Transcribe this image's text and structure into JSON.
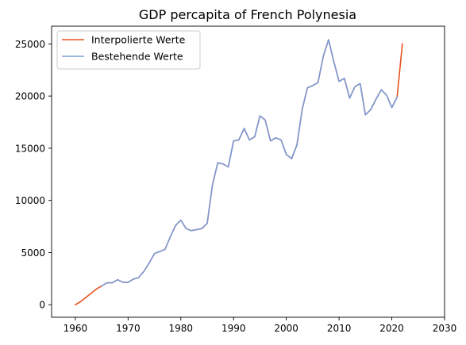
{
  "chart_data": {
    "type": "line",
    "title": "GDP percapita of French Polynesia",
    "xlabel": "",
    "ylabel": "",
    "xlim": [
      1955.5,
      2030
    ],
    "ylim": [
      -1200,
      26700
    ],
    "xticks": [
      1960,
      1970,
      1980,
      1990,
      2000,
      2010,
      2020,
      2030
    ],
    "yticks": [
      0,
      5000,
      10000,
      15000,
      20000,
      25000
    ],
    "grid": false,
    "legend": "top-left",
    "series": [
      {
        "name": "Interpolierte Werte",
        "color": "#e8521d",
        "x": [
          1960,
          1961,
          1962,
          1963,
          1964,
          1965,
          1966,
          1967,
          1968,
          1969,
          1970,
          1971,
          1972,
          1973,
          1974,
          1975,
          1976,
          1977,
          1978,
          1979,
          1980,
          1981,
          1982,
          1983,
          1984,
          1985,
          1986,
          1987,
          1988,
          1989,
          1990,
          1991,
          1992,
          1993,
          1994,
          1995,
          1996,
          1997,
          1998,
          1999,
          2000,
          2001,
          2002,
          2003,
          2004,
          2005,
          2006,
          2007,
          2008,
          2009,
          2010,
          2011,
          2012,
          2013,
          2014,
          2015,
          2016,
          2017,
          2018,
          2019,
          2020,
          2021,
          2022
        ],
        "values": [
          0,
          300,
          700,
          1100,
          1500,
          1800,
          2100,
          2100,
          2400,
          2150,
          2150,
          2450,
          2600,
          3200,
          4000,
          4900,
          5100,
          5300,
          6500,
          7600,
          8100,
          7300,
          7100,
          7200,
          7300,
          7800,
          11500,
          13600,
          13500,
          13200,
          15700,
          15800,
          16900,
          15800,
          16100,
          18100,
          17700,
          15700,
          16000,
          15800,
          14400,
          14000,
          15300,
          18700,
          20800,
          21000,
          21300,
          23800,
          25400,
          23300,
          21400,
          21700,
          19800,
          20900,
          21200,
          18200,
          18700,
          19700,
          20600,
          20100,
          18900,
          19900,
          25000
        ]
      },
      {
        "name": "Bestehende Werte",
        "color": "#7a9bd9",
        "x": [
          1965,
          1966,
          1967,
          1968,
          1969,
          1970,
          1971,
          1972,
          1973,
          1974,
          1975,
          1976,
          1977,
          1978,
          1979,
          1980,
          1981,
          1982,
          1983,
          1984,
          1985,
          1986,
          1987,
          1988,
          1989,
          1990,
          1991,
          1992,
          1993,
          1994,
          1995,
          1996,
          1997,
          1998,
          1999,
          2000,
          2001,
          2002,
          2003,
          2004,
          2005,
          2006,
          2007,
          2008,
          2009,
          2010,
          2011,
          2012,
          2013,
          2014,
          2015,
          2016,
          2017,
          2018,
          2019,
          2020,
          2021
        ],
        "values": [
          1800,
          2100,
          2100,
          2400,
          2150,
          2150,
          2450,
          2600,
          3200,
          4000,
          4900,
          5100,
          5300,
          6500,
          7600,
          8100,
          7300,
          7100,
          7200,
          7300,
          7800,
          11500,
          13600,
          13500,
          13200,
          15700,
          15800,
          16900,
          15800,
          16100,
          18100,
          17700,
          15700,
          16000,
          15800,
          14400,
          14000,
          15300,
          18700,
          20800,
          21000,
          21300,
          23800,
          25400,
          23300,
          21400,
          21700,
          19800,
          20900,
          21200,
          18200,
          18700,
          19700,
          20600,
          20100,
          18900,
          19900
        ]
      }
    ]
  }
}
